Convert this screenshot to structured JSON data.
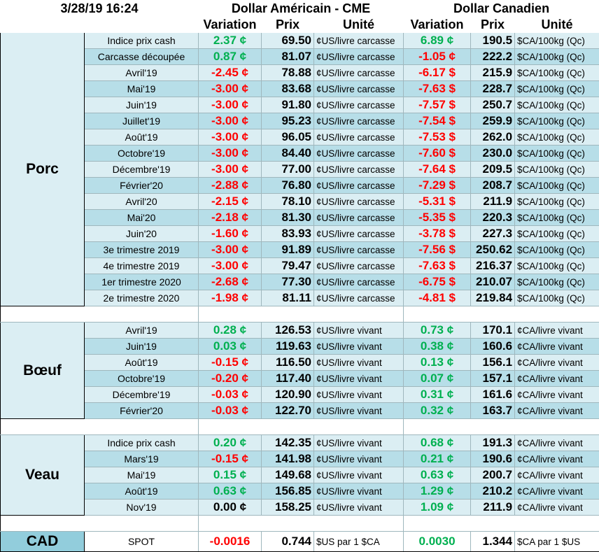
{
  "header": {
    "date": "3/28/19 16:24",
    "usd_title": "Dollar Américain - CME",
    "cad_title": "Dollar Canadien",
    "columns": [
      "Variation",
      "Prix",
      "Unité",
      "Variation",
      "Prix",
      "Unité"
    ]
  },
  "sections": [
    {
      "label": "Porc",
      "rows": [
        [
          "Indice prix cash",
          "2.37 ¢",
          "69.50",
          "¢US/livre carcasse",
          "6.89 ¢",
          "190.5",
          "$CA/100kg (Qc)"
        ],
        [
          "Carcasse découpée",
          "0.87 ¢",
          "81.07",
          "¢US/livre carcasse",
          "-1.05 ¢",
          "222.2",
          "$CA/100kg (Qc)"
        ],
        [
          "Avril'19",
          "-2.45 ¢",
          "78.88",
          "¢US/livre carcasse",
          "-6.17 $",
          "215.9",
          "$CA/100kg (Qc)"
        ],
        [
          "Mai'19",
          "-3.00 ¢",
          "83.68",
          "¢US/livre carcasse",
          "-7.63 $",
          "228.7",
          "$CA/100kg (Qc)"
        ],
        [
          "Juin'19",
          "-3.00 ¢",
          "91.80",
          "¢US/livre carcasse",
          "-7.57 $",
          "250.7",
          "$CA/100kg (Qc)"
        ],
        [
          "Juillet'19",
          "-3.00 ¢",
          "95.23",
          "¢US/livre carcasse",
          "-7.54 $",
          "259.9",
          "$CA/100kg (Qc)"
        ],
        [
          "Août'19",
          "-3.00 ¢",
          "96.05",
          "¢US/livre carcasse",
          "-7.53 $",
          "262.0",
          "$CA/100kg (Qc)"
        ],
        [
          "Octobre'19",
          "-3.00 ¢",
          "84.40",
          "¢US/livre carcasse",
          "-7.60 $",
          "230.0",
          "$CA/100kg (Qc)"
        ],
        [
          "Décembre'19",
          "-3.00 ¢",
          "77.00",
          "¢US/livre carcasse",
          "-7.64 $",
          "209.5",
          "$CA/100kg (Qc)"
        ],
        [
          "Février'20",
          "-2.88 ¢",
          "76.80",
          "¢US/livre carcasse",
          "-7.29 $",
          "208.7",
          "$CA/100kg (Qc)"
        ],
        [
          "Avril'20",
          "-2.15 ¢",
          "78.10",
          "¢US/livre carcasse",
          "-5.31 $",
          "211.9",
          "$CA/100kg (Qc)"
        ],
        [
          "Mai'20",
          "-2.18 ¢",
          "81.30",
          "¢US/livre carcasse",
          "-5.35 $",
          "220.3",
          "$CA/100kg (Qc)"
        ],
        [
          "Juin'20",
          "-1.60 ¢",
          "83.93",
          "¢US/livre carcasse",
          "-3.78 $",
          "227.3",
          "$CA/100kg (Qc)"
        ],
        [
          "3e trimestre 2019",
          "-3.00 ¢",
          "91.89",
          "¢US/livre carcasse",
          "-7.56 $",
          "250.62",
          "$CA/100kg (Qc)"
        ],
        [
          "4e trimestre 2019",
          "-3.00 ¢",
          "79.47",
          "¢US/livre carcasse",
          "-7.63 $",
          "216.37",
          "$CA/100kg (Qc)"
        ],
        [
          "1er trimestre 2020",
          "-2.68 ¢",
          "77.30",
          "¢US/livre carcasse",
          "-6.75 $",
          "210.07",
          "$CA/100kg (Qc)"
        ],
        [
          "2e trimestre 2020",
          "-1.98 ¢",
          "81.11",
          "¢US/livre carcasse",
          "-4.81 $",
          "219.84",
          "$CA/100kg (Qc)"
        ]
      ]
    },
    {
      "label": "Bœuf",
      "rows": [
        [
          "Avril'19",
          "0.28 ¢",
          "126.53",
          "¢US/livre vivant",
          "0.73 ¢",
          "170.1",
          "¢CA/livre vivant"
        ],
        [
          "Juin'19",
          "0.03 ¢",
          "119.63",
          "¢US/livre vivant",
          "0.38 ¢",
          "160.6",
          "¢CA/livre vivant"
        ],
        [
          "Août'19",
          "-0.15 ¢",
          "116.50",
          "¢US/livre vivant",
          "0.13 ¢",
          "156.1",
          "¢CA/livre vivant"
        ],
        [
          "Octobre'19",
          "-0.20 ¢",
          "117.40",
          "¢US/livre vivant",
          "0.07 ¢",
          "157.1",
          "¢CA/livre vivant"
        ],
        [
          "Décembre'19",
          "-0.03 ¢",
          "120.90",
          "¢US/livre vivant",
          "0.31 ¢",
          "161.6",
          "¢CA/livre vivant"
        ],
        [
          "Février'20",
          "-0.03 ¢",
          "122.70",
          "¢US/livre vivant",
          "0.32 ¢",
          "163.7",
          "¢CA/livre vivant"
        ]
      ]
    },
    {
      "label": "Veau",
      "rows": [
        [
          "Indice prix cash",
          "0.20 ¢",
          "142.35",
          "¢US/livre vivant",
          "0.68 ¢",
          "191.3",
          "¢CA/livre vivant"
        ],
        [
          "Mars'19",
          "-0.15 ¢",
          "141.98",
          "¢US/livre vivant",
          "0.21 ¢",
          "190.6",
          "¢CA/livre vivant"
        ],
        [
          "Mai'19",
          "0.15 ¢",
          "149.68",
          "¢US/livre vivant",
          "0.63 ¢",
          "200.7",
          "¢CA/livre vivant"
        ],
        [
          "Août'19",
          "0.63 ¢",
          "156.85",
          "¢US/livre vivant",
          "1.29 ¢",
          "210.2",
          "¢CA/livre vivant"
        ],
        [
          "Nov'19",
          "0.00 ¢",
          "158.25",
          "¢US/livre vivant",
          "1.09 ¢",
          "211.9",
          "¢CA/livre vivant"
        ]
      ]
    }
  ],
  "spot": {
    "label": "CAD",
    "row": [
      "SPOT",
      "-0.0016",
      "0.744",
      "$US par 1 $CA",
      "0.0030",
      "1.344",
      "$CA par 1 $US"
    ]
  }
}
